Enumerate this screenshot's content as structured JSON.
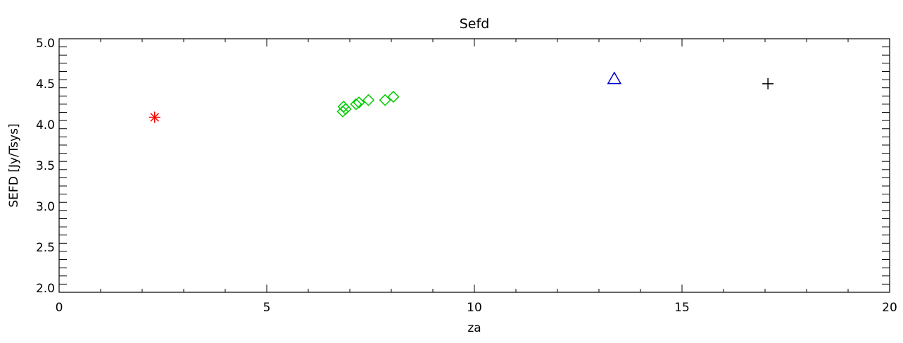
{
  "chart_data": {
    "type": "scatter",
    "title": "Sefd",
    "xlabel": "za",
    "ylabel": "SEFD [Jy/Tsys]",
    "xlim": [
      0,
      20
    ],
    "ylim": [
      1.95,
      5.05
    ],
    "xticks": [
      0,
      5,
      10,
      15,
      20
    ],
    "xtick_labels": [
      "0",
      "5",
      "10",
      "15",
      "20"
    ],
    "yticks": [
      2.0,
      2.5,
      3.0,
      3.5,
      4.0,
      4.5,
      5.0
    ],
    "ytick_labels": [
      "2.0",
      "2.5",
      "3.0",
      "3.5",
      "4.0",
      "4.5",
      "5.0"
    ],
    "grid": false,
    "series": [
      {
        "marker": "asterisk",
        "color": "#ff0000",
        "points": [
          [
            2.3,
            4.09
          ]
        ]
      },
      {
        "marker": "diamond",
        "color": "#00cc00",
        "points": [
          [
            6.83,
            4.16
          ],
          [
            6.85,
            4.22
          ],
          [
            6.9,
            4.19
          ],
          [
            7.15,
            4.25
          ],
          [
            7.22,
            4.27
          ],
          [
            7.45,
            4.3
          ],
          [
            7.85,
            4.3
          ],
          [
            8.05,
            4.34
          ]
        ]
      },
      {
        "marker": "triangle",
        "color": "#0000cc",
        "points": [
          [
            13.37,
            4.56
          ]
        ]
      },
      {
        "marker": "plus",
        "color": "#000000",
        "points": [
          [
            17.07,
            4.5
          ]
        ]
      }
    ]
  }
}
